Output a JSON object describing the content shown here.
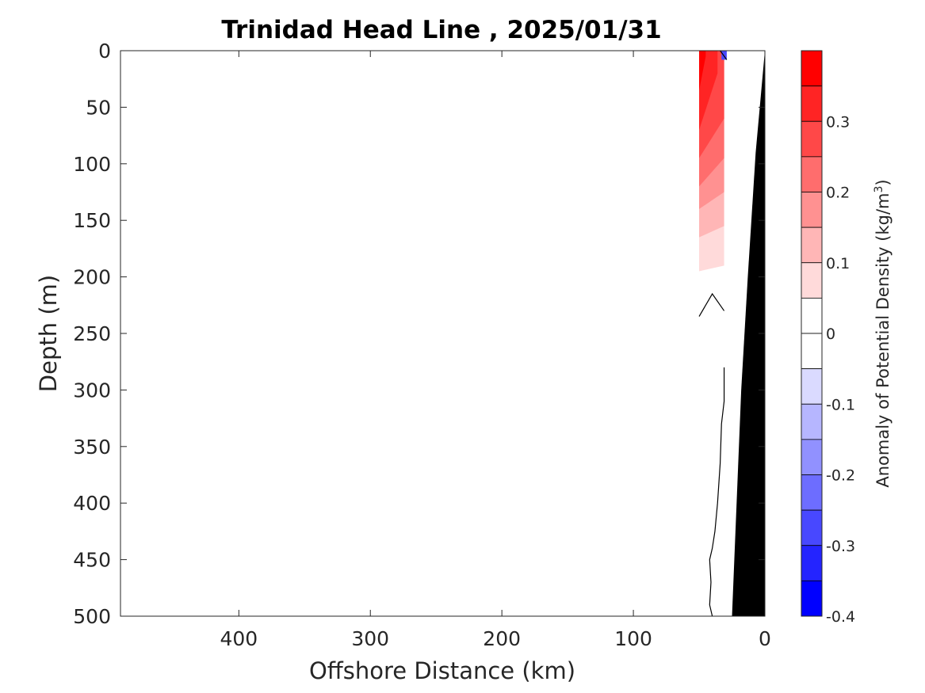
{
  "chart_data": {
    "type": "heatmap",
    "title": "Trinidad Head Line , 2025/01/31",
    "xlabel": "Offshore Distance (km)",
    "ylabel": "Depth (m)",
    "xlim": [
      490,
      0
    ],
    "ylim": [
      0,
      500
    ],
    "x_reversed": true,
    "y_reversed": true,
    "x_ticks": [
      400,
      300,
      200,
      100,
      0
    ],
    "y_ticks": [
      0,
      50,
      100,
      150,
      200,
      250,
      300,
      350,
      400,
      450,
      500
    ],
    "colorbar": {
      "label_main": "Anomaly of Potential Density (kg/m",
      "label_sup": "3",
      "label_end": ")",
      "range": [
        -0.4,
        0.4
      ],
      "ticks": [
        {
          "value": 0.3,
          "label": "0.3"
        },
        {
          "value": 0.2,
          "label": "0.2"
        },
        {
          "value": 0.1,
          "label": "0.1"
        },
        {
          "value": 0.0,
          "label": "0"
        },
        {
          "value": -0.1,
          "label": "-0.1"
        },
        {
          "value": -0.2,
          "label": "-0.2"
        },
        {
          "value": -0.3,
          "label": "-0.3"
        },
        {
          "value": -0.4,
          "label": "-0.4"
        }
      ],
      "levels": [
        {
          "from": 0.35,
          "to": 0.4,
          "color": "#ff0000"
        },
        {
          "from": 0.3,
          "to": 0.35,
          "color": "#ff2424"
        },
        {
          "from": 0.25,
          "to": 0.3,
          "color": "#ff4848"
        },
        {
          "from": 0.2,
          "to": 0.25,
          "color": "#ff6d6d"
        },
        {
          "from": 0.15,
          "to": 0.2,
          "color": "#ff9191"
        },
        {
          "from": 0.1,
          "to": 0.15,
          "color": "#ffb6b6"
        },
        {
          "from": 0.05,
          "to": 0.1,
          "color": "#ffdada"
        },
        {
          "from": 0.0,
          "to": 0.05,
          "color": "#ffffff"
        },
        {
          "from": -0.05,
          "to": 0.0,
          "color": "#ffffff"
        },
        {
          "from": -0.1,
          "to": -0.05,
          "color": "#dadaff"
        },
        {
          "from": -0.15,
          "to": -0.1,
          "color": "#b6b6ff"
        },
        {
          "from": -0.2,
          "to": -0.15,
          "color": "#9191ff"
        },
        {
          "from": -0.25,
          "to": -0.2,
          "color": "#6d6dff"
        },
        {
          "from": -0.3,
          "to": -0.25,
          "color": "#4848ff"
        },
        {
          "from": -0.35,
          "to": -0.3,
          "color": "#2424ff"
        },
        {
          "from": -0.4,
          "to": -0.35,
          "color": "#0000ff"
        }
      ]
    },
    "anomaly_bands": [
      {
        "level": 0.05,
        "color": "#ffdada",
        "x_range": [
          50,
          31
        ],
        "depth_top": 0,
        "depth_bottom_offshore": 195,
        "depth_bottom_inshore": 190
      },
      {
        "level": 0.1,
        "color": "#ffb6b6",
        "x_range": [
          50,
          31
        ],
        "depth_top": 0,
        "depth_bottom_offshore": 165,
        "depth_bottom_inshore": 155
      },
      {
        "level": 0.15,
        "color": "#ff9191",
        "x_range": [
          50,
          31
        ],
        "depth_top": 0,
        "depth_bottom_offshore": 140,
        "depth_bottom_inshore": 125
      },
      {
        "level": 0.2,
        "color": "#ff6d6d",
        "x_range": [
          50,
          31
        ],
        "depth_top": 0,
        "depth_bottom_offshore": 120,
        "depth_bottom_inshore": 95
      },
      {
        "level": 0.25,
        "color": "#ff4848",
        "x_range": [
          50,
          31
        ],
        "depth_top": 0,
        "depth_bottom_offshore": 95,
        "depth_bottom_inshore": 60
      },
      {
        "level": 0.3,
        "color": "#ff2424",
        "x_range": [
          50,
          36
        ],
        "depth_top": 0,
        "depth_bottom_offshore": 70,
        "depth_bottom_inshore": 20
      },
      {
        "level": 0.35,
        "color": "#ff0000",
        "x_range": [
          50,
          45
        ],
        "depth_top": 0,
        "depth_bottom_offshore": 35,
        "depth_bottom_inshore": 5
      }
    ],
    "negative_patch": {
      "color": "#4848ff",
      "x_range": [
        33,
        29
      ],
      "depth_range": [
        0,
        8
      ]
    },
    "zero_contours": [
      {
        "points": [
          [
            34,
            0
          ],
          [
            29,
            8
          ]
        ]
      },
      {
        "points": [
          [
            50,
            235
          ],
          [
            40,
            215
          ],
          [
            31,
            230
          ]
        ]
      },
      {
        "points": [
          [
            31,
            280
          ],
          [
            31,
            310
          ],
          [
            33,
            330
          ],
          [
            34,
            365
          ],
          [
            36,
            400
          ],
          [
            38,
            425
          ],
          [
            40,
            440
          ],
          [
            42,
            450
          ],
          [
            41,
            470
          ],
          [
            42,
            490
          ],
          [
            40,
            500
          ]
        ]
      }
    ],
    "bathymetry": {
      "color": "#000000",
      "points": [
        [
          0,
          0
        ],
        [
          7,
          90
        ],
        [
          13,
          200
        ],
        [
          18,
          300
        ],
        [
          25,
          500
        ]
      ]
    }
  }
}
